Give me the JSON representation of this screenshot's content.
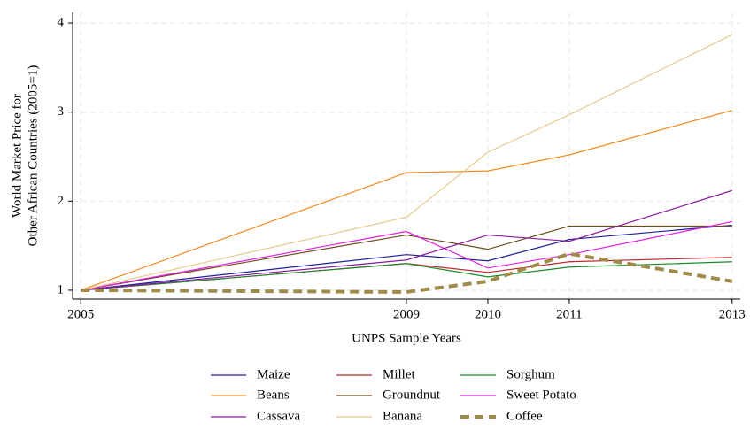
{
  "chart_data": {
    "type": "line",
    "xlabel": "UNPS Sample Years",
    "ylabel": [
      "World Market Price for",
      "Other African Countries (2005=1)"
    ],
    "x": [
      2005,
      2009,
      2010,
      2011,
      2013
    ],
    "xlim": [
      2004.9,
      2013.1
    ],
    "xticks": [
      2005,
      2009,
      2010,
      2011,
      2013
    ],
    "ylim": [
      0.9,
      4.12
    ],
    "yticks": [
      1,
      2,
      3,
      4
    ],
    "grid": true,
    "legend": "bottom",
    "series": [
      {
        "name": "Maize",
        "color": "#1f1f9e",
        "values": [
          1,
          1.4,
          1.33,
          1.57,
          1.73
        ]
      },
      {
        "name": "Millet",
        "color": "#c0272d",
        "values": [
          1,
          1.3,
          1.2,
          1.32,
          1.37
        ]
      },
      {
        "name": "Sorghum",
        "color": "#1a8a2a",
        "values": [
          1,
          1.3,
          1.15,
          1.26,
          1.32
        ]
      },
      {
        "name": "Beans",
        "color": "#f28b1e",
        "values": [
          1,
          2.32,
          2.34,
          2.52,
          3.02
        ]
      },
      {
        "name": "Groundnut",
        "color": "#6b4c1e",
        "values": [
          1,
          1.62,
          1.46,
          1.72,
          1.72
        ]
      },
      {
        "name": "Sweet Potato",
        "color": "#e61ee6",
        "values": [
          1,
          1.66,
          1.25,
          1.4,
          1.77
        ]
      },
      {
        "name": "Cassava",
        "color": "#8a1a9c",
        "values": [
          1,
          1.34,
          1.62,
          1.55,
          2.12
        ]
      },
      {
        "name": "Banana",
        "color": "#e8c98a",
        "values": [
          1,
          1.82,
          2.55,
          2.97,
          3.87
        ]
      },
      {
        "name": "Coffee",
        "color": "#a08c4a",
        "dashed": true,
        "values": [
          1,
          0.98,
          1.1,
          1.41,
          1.1
        ]
      }
    ]
  }
}
